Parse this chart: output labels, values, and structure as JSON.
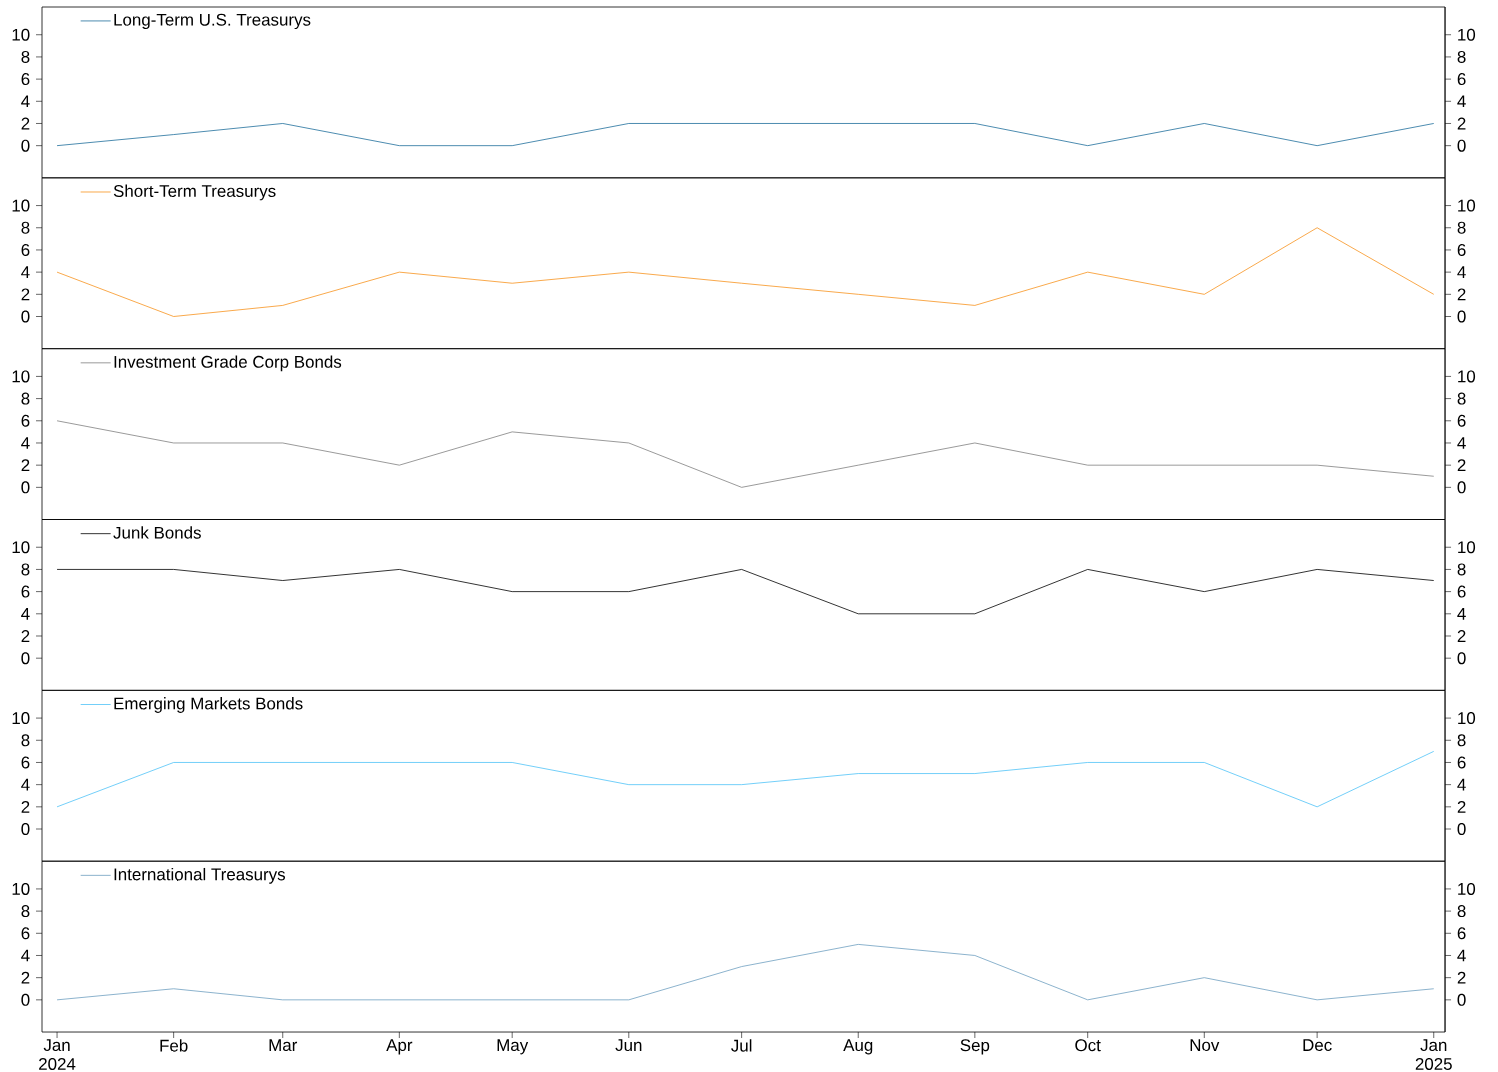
{
  "chart_data": [
    {
      "type": "line",
      "x": [
        "2024-01",
        "2024-02",
        "2024-03",
        "2024-04",
        "2024-05",
        "2024-06",
        "2024-07",
        "2024-08",
        "2024-09",
        "2024-10",
        "2024-11",
        "2024-12",
        "2025-01"
      ],
      "series": [
        {
          "name": "Long-Term U.S. Treasurys",
          "color": "#1f6e9c",
          "values": [
            0,
            1,
            2,
            0,
            0,
            2,
            2,
            2,
            2,
            0,
            2,
            0,
            2
          ]
        }
      ],
      "xlim": [
        "2023-12-28",
        "2025-01-04"
      ],
      "ylim": [
        -2.9,
        12.5
      ],
      "yticks": [
        0,
        2,
        4,
        6,
        8,
        10
      ],
      "y2lim": [
        -2.9,
        12.5
      ],
      "y2ticks": [
        0,
        2,
        4,
        6,
        8,
        10
      ],
      "legend": "top left",
      "tick_labels": "y"
    },
    {
      "type": "line",
      "x": [
        "2024-01",
        "2024-02",
        "2024-03",
        "2024-04",
        "2024-05",
        "2024-06",
        "2024-07",
        "2024-08",
        "2024-09",
        "2024-10",
        "2024-11",
        "2024-12",
        "2025-01"
      ],
      "series": [
        {
          "name": "Short-Term Treasurys",
          "color": "#f7931e",
          "values": [
            4,
            0,
            1,
            4,
            3,
            4,
            3,
            2,
            1,
            4,
            2,
            8,
            2
          ]
        }
      ],
      "xlim": [
        "2023-12-28",
        "2025-01-04"
      ],
      "ylim": [
        -2.9,
        12.5
      ],
      "yticks": [
        0,
        2,
        4,
        6,
        8,
        10
      ],
      "y2lim": [
        -2.9,
        12.5
      ],
      "y2ticks": [
        0,
        2,
        4,
        6,
        8,
        10
      ],
      "legend": "top left",
      "tick_labels": "y"
    },
    {
      "type": "line",
      "x": [
        "2024-01",
        "2024-02",
        "2024-03",
        "2024-04",
        "2024-05",
        "2024-06",
        "2024-07",
        "2024-08",
        "2024-09",
        "2024-10",
        "2024-11",
        "2024-12",
        "2025-01"
      ],
      "series": [
        {
          "name": "Investment Grade Corp Bonds",
          "color": "#808080",
          "values": [
            6,
            4,
            4,
            2,
            5,
            4,
            0,
            2,
            4,
            2,
            2,
            2,
            1
          ]
        }
      ],
      "xlim": [
        "2023-12-28",
        "2025-01-04"
      ],
      "ylim": [
        -2.9,
        12.5
      ],
      "yticks": [
        0,
        2,
        4,
        6,
        8,
        10
      ],
      "y2lim": [
        -2.9,
        12.5
      ],
      "y2ticks": [
        0,
        2,
        4,
        6,
        8,
        10
      ],
      "legend": "top left",
      "tick_labels": "y"
    },
    {
      "type": "line",
      "x": [
        "2024-01",
        "2024-02",
        "2024-03",
        "2024-04",
        "2024-05",
        "2024-06",
        "2024-07",
        "2024-08",
        "2024-09",
        "2024-10",
        "2024-11",
        "2024-12",
        "2025-01"
      ],
      "series": [
        {
          "name": "Junk Bonds",
          "color": "#000000",
          "values": [
            8,
            8,
            7,
            8,
            6,
            6,
            8,
            4,
            4,
            8,
            6,
            8,
            7
          ]
        }
      ],
      "xlim": [
        "2023-12-28",
        "2025-01-04"
      ],
      "ylim": [
        -2.9,
        12.5
      ],
      "yticks": [
        0,
        2,
        4,
        6,
        8,
        10
      ],
      "y2lim": [
        -2.9,
        12.5
      ],
      "y2ticks": [
        0,
        2,
        4,
        6,
        8,
        10
      ],
      "legend": "top left",
      "tick_labels": "y"
    },
    {
      "type": "line",
      "x": [
        "2024-01",
        "2024-02",
        "2024-03",
        "2024-04",
        "2024-05",
        "2024-06",
        "2024-07",
        "2024-08",
        "2024-09",
        "2024-10",
        "2024-11",
        "2024-12",
        "2025-01"
      ],
      "series": [
        {
          "name": "Emerging Markets Bonds",
          "color": "#4fc3f7",
          "values": [
            2,
            6,
            6,
            6,
            6,
            4,
            4,
            5,
            5,
            6,
            6,
            2,
            7
          ]
        }
      ],
      "xlim": [
        "2023-12-28",
        "2025-01-04"
      ],
      "ylim": [
        -2.9,
        12.5
      ],
      "yticks": [
        0,
        2,
        4,
        6,
        8,
        10
      ],
      "y2lim": [
        -2.9,
        12.5
      ],
      "y2ticks": [
        0,
        2,
        4,
        6,
        8,
        10
      ],
      "legend": "top left",
      "tick_labels": "y"
    },
    {
      "type": "line",
      "x": [
        "2024-01",
        "2024-02",
        "2024-03",
        "2024-04",
        "2024-05",
        "2024-06",
        "2024-07",
        "2024-08",
        "2024-09",
        "2024-10",
        "2024-11",
        "2024-12",
        "2025-01"
      ],
      "series": [
        {
          "name": "International Treasurys",
          "color": "#6fa0c0",
          "values": [
            0,
            1,
            0,
            0,
            0,
            0,
            3,
            5,
            4,
            0,
            2,
            0,
            1
          ]
        }
      ],
      "xlim": [
        "2023-12-28",
        "2025-01-04"
      ],
      "ylim": [
        -2.9,
        12.5
      ],
      "yticks": [
        0,
        2,
        4,
        6,
        8,
        10
      ],
      "y2lim": [
        -2.9,
        12.5
      ],
      "y2ticks": [
        0,
        2,
        4,
        6,
        8,
        10
      ],
      "legend": "top left",
      "xticks": [
        {
          "value": "2024-01",
          "label": "Jan 2024"
        },
        {
          "value": "2024-02",
          "label": "Feb"
        },
        {
          "value": "2024-03",
          "label": "Mar"
        },
        {
          "value": "2024-04",
          "label": "Apr"
        },
        {
          "value": "2024-05",
          "label": "May"
        },
        {
          "value": "2024-06",
          "label": "Jun"
        },
        {
          "value": "2024-07",
          "label": "Jul"
        },
        {
          "value": "2024-08",
          "label": "Aug"
        },
        {
          "value": "2024-09",
          "label": "Sep"
        },
        {
          "value": "2024-10",
          "label": "Oct"
        },
        {
          "value": "2024-11",
          "label": "Nov"
        },
        {
          "value": "2024-12",
          "label": "Dec"
        },
        {
          "value": "2025-01",
          "label": "Jan 2025"
        }
      ]
    }
  ]
}
